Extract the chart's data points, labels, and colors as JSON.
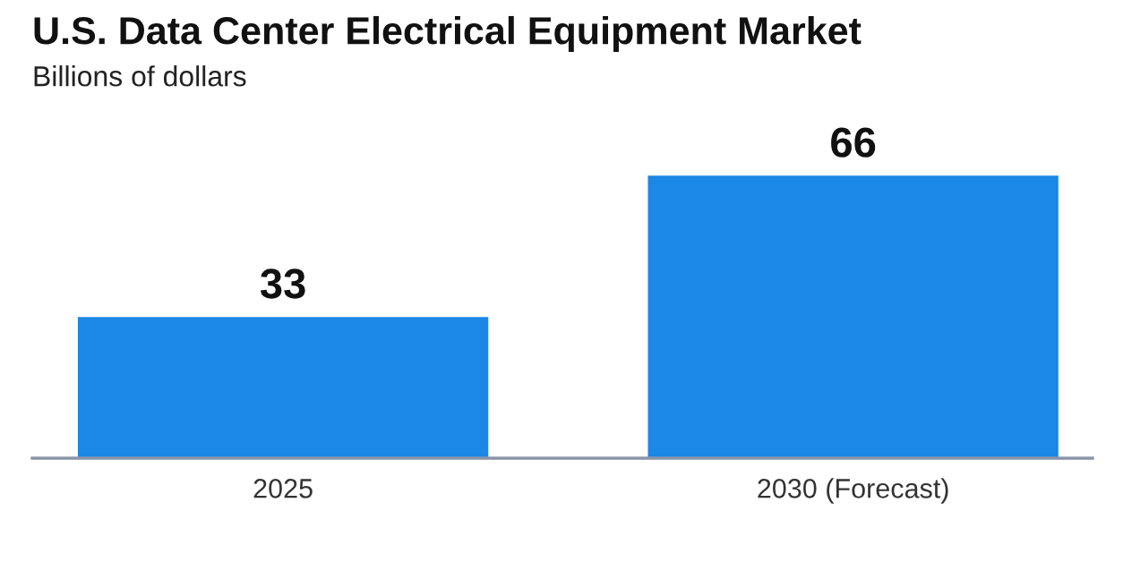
{
  "chart_data": {
    "type": "bar",
    "title": "U.S. Data Center Electrical Equipment Market",
    "subtitle": "Billions of dollars",
    "categories": [
      "2025",
      "2030 (Forecast)"
    ],
    "values": [
      33,
      66
    ],
    "color": "#1b87e6",
    "data_labels": true,
    "grid": false
  }
}
